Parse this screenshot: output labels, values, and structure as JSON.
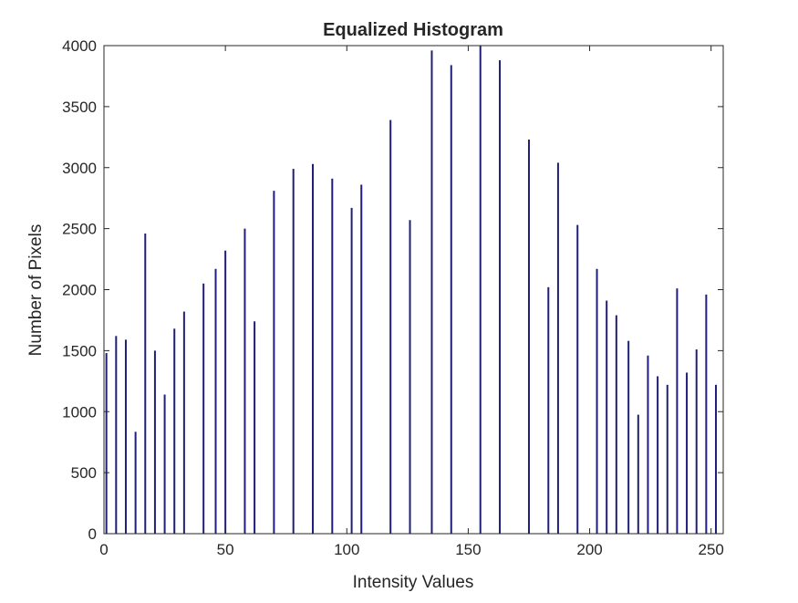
{
  "chart_data": {
    "type": "bar",
    "title": "Equalized Histogram",
    "xlabel": "Intensity Values",
    "ylabel": "Number of Pixels",
    "xlim": [
      0,
      255
    ],
    "ylim": [
      0,
      4000
    ],
    "grid": false,
    "bar_color": "#1f1f7a",
    "x_ticks": [
      0,
      50,
      100,
      150,
      200,
      250
    ],
    "y_ticks": [
      0,
      500,
      1000,
      1500,
      2000,
      2500,
      3000,
      3500,
      4000
    ],
    "x": [
      1,
      5,
      9,
      13,
      17,
      21,
      25,
      29,
      33,
      41,
      46,
      50,
      58,
      62,
      70,
      78,
      86,
      94,
      102,
      106,
      118,
      126,
      135,
      143,
      155,
      163,
      175,
      183,
      187,
      195,
      203,
      207,
      211,
      216,
      220,
      224,
      228,
      232,
      236,
      240,
      244,
      248,
      252
    ],
    "values": [
      1480,
      1620,
      1590,
      835,
      2460,
      1500,
      1140,
      1680,
      1820,
      2050,
      2170,
      2320,
      2500,
      1740,
      2810,
      2990,
      3030,
      2910,
      2670,
      2860,
      3390,
      2570,
      3960,
      3840,
      4000,
      3880,
      3230,
      2020,
      3040,
      2530,
      2170,
      1910,
      1790,
      1580,
      975,
      1460,
      1290,
      1220,
      2010,
      1320,
      1510,
      1960,
      1220
    ]
  }
}
